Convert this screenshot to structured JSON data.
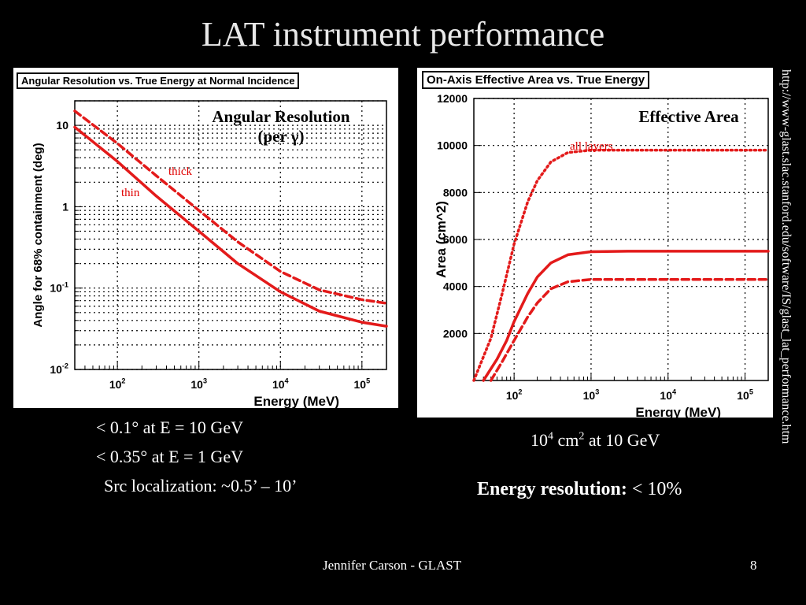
{
  "slide": {
    "title": "LAT instrument performance",
    "url": "http://www-glast.slac.stanford.edu/software/IS/glast_lat_performance.htm",
    "footer_author": "Jennifer Carson - GLAST",
    "page_number": "8"
  },
  "left_stats": {
    "line1": "< 0.1° at E = 10 GeV",
    "line2": "< 0.35° at E = 1 GeV",
    "line3": "Src localization: ~0.5’ – 10’"
  },
  "right_stats": {
    "area_base": "10",
    "area_exp": "4",
    "area_unit": " cm",
    "area_unit_exp": "2",
    "area_rest": " at 10 GeV",
    "eres_bold": "Energy resolution:",
    "eres_rest": " < 10%"
  },
  "chart_data": [
    {
      "type": "line",
      "title": "Angular Resolution vs. True Energy at Normal Incidence",
      "annotation_line1": "Angular Resolution",
      "annotation_line2": "(per γ)",
      "xlabel": "Energy (MeV)",
      "ylabel": "Angle for 68% containment (deg)",
      "xscale": "log",
      "yscale": "log",
      "xlim": [
        30,
        200000
      ],
      "ylim": [
        0.01,
        20
      ],
      "x_ticks": [
        {
          "value": 100,
          "base": "10",
          "exp": "2"
        },
        {
          "value": 1000,
          "base": "10",
          "exp": "3"
        },
        {
          "value": 10000,
          "base": "10",
          "exp": "4"
        },
        {
          "value": 100000,
          "base": "10",
          "exp": "5"
        }
      ],
      "y_ticks": [
        {
          "value": 10,
          "base": "10",
          "exp": ""
        },
        {
          "value": 1,
          "base": "1",
          "exp": ""
        },
        {
          "value": 0.1,
          "base": "10",
          "exp": "-1"
        },
        {
          "value": 0.01,
          "base": "10",
          "exp": "-2"
        }
      ],
      "grid": true,
      "color": "#e31a1a",
      "series": [
        {
          "name": "thin",
          "style": "solid",
          "x": [
            30,
            100,
            300,
            1000,
            3000,
            10000,
            30000,
            100000,
            200000
          ],
          "y": [
            9.5,
            3.6,
            1.35,
            0.5,
            0.2,
            0.09,
            0.052,
            0.038,
            0.034
          ]
        },
        {
          "name": "thick",
          "style": "dashed",
          "x": [
            30,
            100,
            300,
            1000,
            3000,
            10000,
            30000,
            100000,
            200000
          ],
          "y": [
            15,
            6.0,
            2.4,
            0.9,
            0.37,
            0.16,
            0.095,
            0.072,
            0.065
          ]
        }
      ]
    },
    {
      "type": "line",
      "title": "On-Axis Effective Area vs. True Energy",
      "annotation_line1": "Effective Area",
      "xlabel": "Energy (MeV)",
      "ylabel": "Area (cm^2)",
      "xscale": "log",
      "yscale": "linear",
      "xlim": [
        30,
        200000
      ],
      "ylim": [
        0,
        12000
      ],
      "x_ticks": [
        {
          "value": 100,
          "base": "10",
          "exp": "2"
        },
        {
          "value": 1000,
          "base": "10",
          "exp": "3"
        },
        {
          "value": 10000,
          "base": "10",
          "exp": "4"
        },
        {
          "value": 100000,
          "base": "10",
          "exp": "5"
        }
      ],
      "y_ticks": [
        {
          "value": 2000,
          "label": "2000"
        },
        {
          "value": 4000,
          "label": "4000"
        },
        {
          "value": 6000,
          "label": "6000"
        },
        {
          "value": 8000,
          "label": "8000"
        },
        {
          "value": 10000,
          "label": "10000"
        },
        {
          "value": 12000,
          "label": "12000"
        }
      ],
      "grid": true,
      "color": "#e31a1a",
      "series": [
        {
          "name": "all layers",
          "style": "dotted",
          "x": [
            30,
            50,
            70,
            100,
            150,
            200,
            300,
            500,
            1000,
            3000,
            10000,
            200000
          ],
          "y": [
            0,
            1800,
            3700,
            5800,
            7600,
            8500,
            9300,
            9700,
            9800,
            9800,
            9800,
            9800
          ]
        },
        {
          "name": "",
          "style": "solid",
          "x": [
            40,
            60,
            80,
            100,
            150,
            200,
            300,
            500,
            1000,
            3000,
            10000,
            200000
          ],
          "y": [
            0,
            900,
            1700,
            2500,
            3700,
            4400,
            5000,
            5350,
            5480,
            5500,
            5500,
            5500
          ]
        },
        {
          "name": "",
          "style": "dashed",
          "x": [
            50,
            70,
            100,
            150,
            200,
            300,
            500,
            1000,
            3000,
            10000,
            200000
          ],
          "y": [
            0,
            800,
            1700,
            2700,
            3300,
            3900,
            4200,
            4300,
            4300,
            4300,
            4300
          ]
        }
      ]
    }
  ]
}
